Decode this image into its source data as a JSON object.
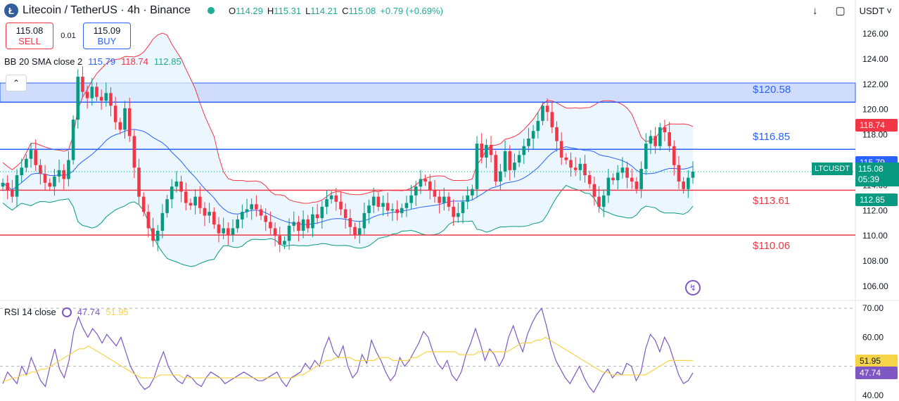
{
  "header": {
    "logo_glyph": "Ł",
    "title": "Litecoin / TetherUS · 4h · Binance",
    "ohlc": [
      {
        "label": "O",
        "value": "114.29"
      },
      {
        "label": "H",
        "value": "115.31"
      },
      {
        "label": "L",
        "value": "114.21"
      },
      {
        "label": "C",
        "value": "115.08"
      }
    ],
    "change": "+0.79 (+0.69%)",
    "currency": "USDT",
    "icons": [
      "download-icon",
      "fullscreen-icon",
      "chevron-down-icon"
    ]
  },
  "trade": {
    "sell_price": "115.08",
    "sell_label": "SELL",
    "spread": "0.01",
    "buy_price": "115.09",
    "buy_label": "BUY"
  },
  "bb_legend": {
    "label": "BB 20 SMA close 2",
    "basis": "115.79",
    "upper": "118.74",
    "lower": "112.85"
  },
  "rsi_legend": {
    "label": "RSI 14 close",
    "rsi": "47.74",
    "ma": "51.95"
  },
  "levels": [
    {
      "label": "$120.58",
      "price": 120.58,
      "color": "#2962ff"
    },
    {
      "label": "$116.85",
      "price": 116.85,
      "color": "#2962ff"
    },
    {
      "label": "$113.61",
      "price": 113.61,
      "color": "#f23645"
    },
    {
      "label": "$110.06",
      "price": 110.06,
      "color": "#f23645"
    }
  ],
  "axis_tags": {
    "upper": {
      "text": "118.74",
      "color": "#f23645"
    },
    "basis": {
      "text": "115.79",
      "color": "#2962ff"
    },
    "lower": {
      "text": "112.85",
      "color": "#089981"
    },
    "symbol": "LTCUSDT",
    "price": "115.08",
    "countdown": "05:39",
    "rsi_ma": {
      "text": "51.95",
      "color": "#f5d547"
    },
    "rsi": {
      "text": "47.74",
      "color": "#7e57c2"
    }
  },
  "colors": {
    "up": "#089981",
    "down": "#f23645",
    "basis": "#2962ff",
    "band_fill": "#e3f2fd",
    "zone_fill": "#cfdcfb",
    "rsi": "#7e57c2",
    "rsi_ma": "#f5d547"
  },
  "chart_data": [
    {
      "type": "candlestick",
      "title": "Litecoin / TetherUS · 4h · Binance",
      "ylim": [
        105,
        127
      ],
      "yticks": [
        106,
        108,
        110,
        112,
        114,
        116,
        118,
        120,
        122,
        124,
        126
      ],
      "yticklabels": [
        "106.00",
        "108.00",
        "110.00",
        "112.00",
        "114.00",
        "116.00",
        "118.00",
        "120.00",
        "122.00",
        "124.00",
        "126.00"
      ],
      "resistance_zone": [
        120.58,
        122.1
      ],
      "close": [
        114.2,
        113.6,
        113.1,
        114.8,
        115.4,
        116.1,
        116.8,
        115.6,
        114.9,
        114.2,
        113.9,
        114.7,
        115.2,
        114.5,
        116.0,
        119.2,
        122.6,
        121.4,
        120.9,
        121.8,
        121.0,
        120.7,
        121.3,
        120.3,
        119.0,
        118.4,
        120.1,
        117.9,
        115.4,
        113.1,
        111.9,
        110.6,
        109.6,
        110.4,
        111.8,
        112.9,
        113.9,
        114.3,
        113.5,
        112.6,
        112.4,
        113.1,
        112.2,
        111.6,
        111.9,
        110.9,
        110.2,
        110.6,
        110.1,
        110.6,
        111.3,
        111.9,
        112.1,
        112.5,
        112.1,
        111.6,
        111.1,
        110.6,
        110.0,
        109.3,
        109.6,
        110.8,
        111.1,
        110.4,
        111.3,
        110.6,
        111.7,
        111.4,
        112.3,
        112.9,
        113.2,
        112.7,
        112.1,
        111.4,
        110.7,
        110.1,
        110.6,
        111.8,
        112.4,
        113.1,
        112.3,
        112.6,
        112.0,
        112.1,
        111.8,
        112.2,
        112.6,
        113.2,
        113.9,
        114.5,
        114.3,
        113.6,
        113.1,
        112.6,
        113.1,
        112.3,
        111.5,
        111.8,
        112.7,
        113.2,
        113.7,
        117.3,
        116.2,
        117.2,
        116.4,
        114.3,
        115.1,
        116.7,
        115.2,
        115.8,
        116.4,
        117.1,
        117.7,
        118.3,
        119.1,
        120.3,
        119.8,
        118.6,
        117.5,
        116.2,
        116.0,
        115.4,
        115.2,
        115.7,
        114.8,
        114.1,
        113.1,
        112.3,
        113.2,
        114.6,
        114.4,
        115.0,
        115.4,
        114.6,
        114.3,
        113.7,
        115.3,
        117.3,
        117.9,
        117.1,
        118.6,
        118.2,
        117.1,
        115.6,
        114.3,
        113.7,
        114.6,
        115.08
      ]
    },
    {
      "type": "line",
      "title": "RSI 14 close",
      "ylim": [
        38,
        72
      ],
      "yticks": [
        40,
        50,
        60,
        70
      ],
      "yticklabels": [
        "40.00",
        "",
        "60.00",
        "70.00"
      ],
      "series": [
        {
          "name": "RSI",
          "values": [
            44,
            48,
            46,
            44,
            50,
            47,
            53,
            49,
            45,
            43,
            50,
            56,
            49,
            46,
            52,
            62,
            67,
            63,
            60,
            63,
            61,
            58,
            61,
            59,
            57,
            60,
            55,
            50,
            47,
            44,
            42,
            43,
            46,
            51,
            55,
            50,
            47,
            45,
            44,
            47,
            46,
            44,
            43,
            46,
            48,
            47,
            46,
            44,
            45,
            46,
            47,
            48,
            47,
            46,
            45,
            45,
            46,
            47,
            48,
            45,
            43,
            46,
            47,
            48,
            51,
            49,
            52,
            50,
            56,
            60,
            55,
            53,
            57,
            50,
            46,
            48,
            54,
            51,
            59,
            55,
            52,
            48,
            45,
            47,
            53,
            50,
            52,
            55,
            58,
            62,
            60,
            55,
            51,
            49,
            52,
            47,
            45,
            48,
            54,
            58,
            63,
            58,
            52,
            56,
            54,
            50,
            53,
            60,
            64,
            59,
            55,
            61,
            65,
            68,
            70,
            64,
            57,
            52,
            49,
            46,
            44,
            47,
            50,
            46,
            43,
            41,
            44,
            47,
            49,
            46,
            48,
            47,
            51,
            50,
            45,
            48,
            56,
            61,
            59,
            55,
            60,
            57,
            52,
            47,
            44,
            45,
            47.74
          ]
        },
        {
          "name": "RSI-based MA",
          "values": [
            45,
            45,
            46,
            46,
            47,
            47,
            48,
            48,
            49,
            49,
            50,
            51,
            52,
            53,
            54,
            55,
            56,
            56,
            57,
            56,
            55,
            54,
            53,
            52,
            51,
            50,
            49,
            48,
            47,
            46,
            46,
            46,
            46,
            47,
            47,
            47,
            47,
            47,
            46,
            46,
            46,
            46,
            46,
            46,
            46,
            46,
            46,
            46,
            46,
            46,
            46,
            46,
            46,
            46,
            46,
            46,
            46,
            46,
            46,
            46,
            46,
            46,
            47,
            47,
            48,
            49,
            50,
            51,
            52,
            52,
            53,
            53,
            53,
            53,
            52,
            52,
            52,
            52,
            52,
            53,
            53,
            53,
            52,
            52,
            52,
            52,
            53,
            53,
            54,
            55,
            55,
            55,
            55,
            55,
            55,
            55,
            54,
            54,
            54,
            54,
            55,
            55,
            55,
            55,
            55,
            55,
            55,
            56,
            57,
            58,
            58,
            58,
            59,
            59,
            60,
            59,
            58,
            57,
            56,
            55,
            54,
            53,
            52,
            51,
            50,
            49,
            48,
            48,
            47,
            47,
            47,
            47,
            47,
            47,
            47,
            47,
            48,
            49,
            50,
            51,
            52,
            52,
            52,
            52,
            52,
            51.95
          ]
        }
      ],
      "reference_lines": [
        70,
        50
      ]
    }
  ]
}
